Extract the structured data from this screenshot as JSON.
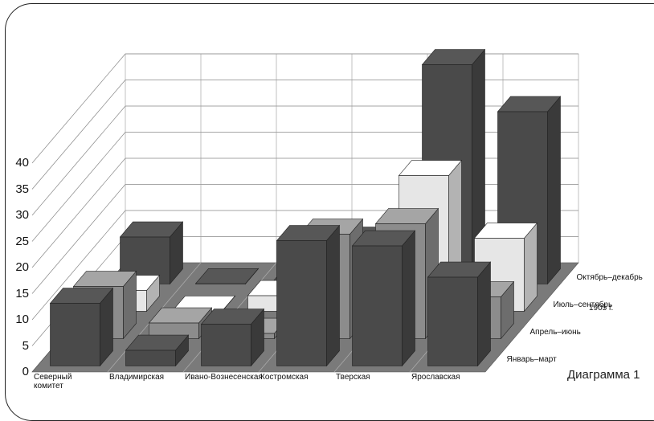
{
  "chart_data": {
    "type": "bar",
    "variant": "3d-grouped",
    "title": "",
    "caption": "Диаграмма 1",
    "year_label": "1905 г.",
    "categories": [
      "Северный комитет",
      "Владимирская",
      "Ивано-Вознесенская",
      "Костромская",
      "Тверская",
      "Ярославская"
    ],
    "yticks": [
      "0",
      "5",
      "10",
      "15",
      "20",
      "25",
      "30",
      "35",
      "40"
    ],
    "ylim": [
      0,
      40
    ],
    "grid": true,
    "series": [
      {
        "name": "Январь–март",
        "color": "#4a4a4a",
        "values": [
          12,
          3,
          8,
          24,
          23,
          17
        ]
      },
      {
        "name": "Апрель–июнь",
        "color": "#8c8c8c",
        "values": [
          10,
          3,
          1,
          20,
          22,
          8
        ]
      },
      {
        "name": "Июль–сентябрь",
        "color": "#e6e6e6",
        "values": [
          4,
          0,
          3,
          5,
          26,
          14
        ]
      },
      {
        "name": "Октябрь–декабрь",
        "color": "#4a4a4a",
        "values": [
          9,
          0,
          0,
          8,
          42,
          33
        ]
      }
    ]
  }
}
